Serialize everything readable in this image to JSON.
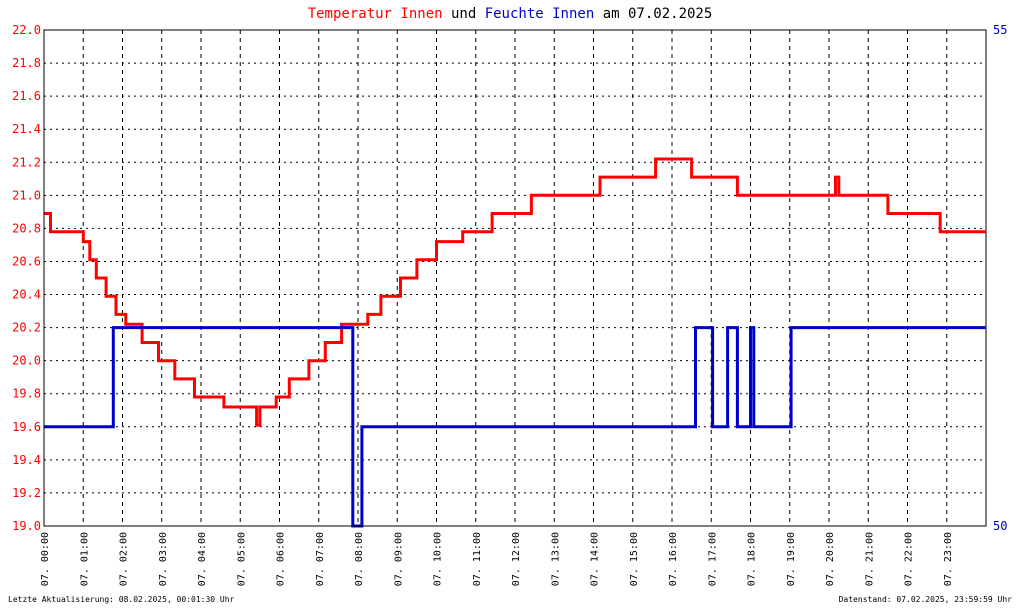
{
  "title": {
    "part1": "Temperatur Innen",
    "part2": " und ",
    "part3": "Feuchte Innen",
    "part4": " am 07.02.2025"
  },
  "footer": {
    "left": "Letzte Aktualisierung: 08.02.2025, 00:01:30 Uhr",
    "right": "Datenstand: 07.02.2025, 23:59:59 Uhr"
  },
  "colors": {
    "temperature": "#ff0000",
    "humidity": "#0000cc",
    "grid": "#000000",
    "title_mid": "#000000"
  },
  "chart_data": {
    "type": "line",
    "x_range": [
      "07.02.2025 00:00",
      "08.02.2025 00:00"
    ],
    "x_ticks": [
      "07. 00:00",
      "07. 01:00",
      "07. 02:00",
      "07. 03:00",
      "07. 04:00",
      "07. 05:00",
      "07. 06:00",
      "07. 07:00",
      "07. 08:00",
      "07. 09:00",
      "07. 10:00",
      "07. 11:00",
      "07. 12:00",
      "07. 13:00",
      "07. 14:00",
      "07. 15:00",
      "07. 16:00",
      "07. 17:00",
      "07. 18:00",
      "07. 19:00",
      "07. 20:00",
      "07. 21:00",
      "07. 22:00",
      "07. 23:00"
    ],
    "y_left": {
      "ylim": [
        19.0,
        22.0
      ],
      "ticks": [
        "19.0",
        "19.2",
        "19.4",
        "19.6",
        "19.8",
        "20.0",
        "20.2",
        "20.4",
        "20.6",
        "20.8",
        "21.0",
        "21.2",
        "21.4",
        "21.6",
        "21.8",
        "22.0"
      ]
    },
    "y_right": {
      "ylim": [
        50,
        55
      ],
      "ticks": [
        "50",
        "55"
      ]
    },
    "grid": true,
    "series": [
      {
        "name": "Temperatur Innen",
        "axis": "left",
        "points": [
          [
            "00:00",
            20.89
          ],
          [
            "00:10",
            20.78
          ],
          [
            "00:55",
            20.78
          ],
          [
            "01:00",
            20.72
          ],
          [
            "01:10",
            20.61
          ],
          [
            "01:20",
            20.5
          ],
          [
            "01:35",
            20.39
          ],
          [
            "01:50",
            20.28
          ],
          [
            "02:05",
            20.22
          ],
          [
            "02:30",
            20.11
          ],
          [
            "02:55",
            20.0
          ],
          [
            "03:20",
            19.89
          ],
          [
            "03:50",
            19.78
          ],
          [
            "04:35",
            19.72
          ],
          [
            "05:25",
            19.61
          ],
          [
            "05:30",
            19.72
          ],
          [
            "05:55",
            19.78
          ],
          [
            "06:15",
            19.89
          ],
          [
            "06:45",
            20.0
          ],
          [
            "07:10",
            20.11
          ],
          [
            "07:35",
            20.22
          ],
          [
            "08:15",
            20.28
          ],
          [
            "08:35",
            20.39
          ],
          [
            "09:05",
            20.5
          ],
          [
            "09:30",
            20.61
          ],
          [
            "10:00",
            20.72
          ],
          [
            "10:40",
            20.78
          ],
          [
            "11:25",
            20.89
          ],
          [
            "12:25",
            21.0
          ],
          [
            "13:20",
            21.0
          ],
          [
            "14:10",
            21.11
          ],
          [
            "15:35",
            21.22
          ],
          [
            "16:30",
            21.11
          ],
          [
            "17:40",
            21.0
          ],
          [
            "19:00",
            21.0
          ],
          [
            "20:10",
            21.11
          ],
          [
            "20:15",
            21.0
          ],
          [
            "21:30",
            20.89
          ],
          [
            "22:50",
            20.78
          ],
          [
            "23:59",
            20.78
          ]
        ]
      },
      {
        "name": "Feuchte Innen",
        "axis": "right",
        "points": [
          [
            "00:00",
            51.0
          ],
          [
            "01:45",
            51.0
          ],
          [
            "01:46",
            52.0
          ],
          [
            "07:50",
            52.0
          ],
          [
            "07:52",
            50.0
          ],
          [
            "08:05",
            50.0
          ],
          [
            "08:06",
            51.0
          ],
          [
            "16:35",
            51.0
          ],
          [
            "16:36",
            52.0
          ],
          [
            "17:00",
            52.0
          ],
          [
            "17:02",
            51.0
          ],
          [
            "17:25",
            52.0
          ],
          [
            "17:40",
            51.0
          ],
          [
            "18:00",
            52.0
          ],
          [
            "18:05",
            51.0
          ],
          [
            "19:00",
            51.0
          ],
          [
            "19:02",
            52.0
          ],
          [
            "23:59",
            52.0
          ]
        ]
      }
    ]
  }
}
